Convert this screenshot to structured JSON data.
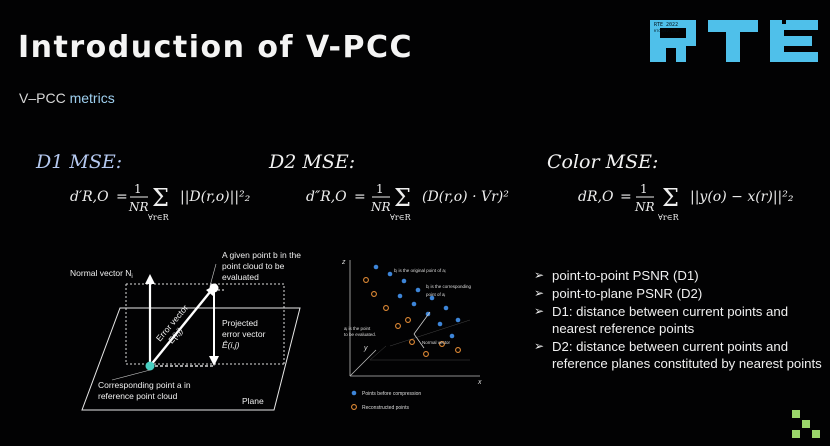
{
  "slide": {
    "title": "Introduction of V-PCC",
    "subtitle_prefix": "V–PCC ",
    "subtitle_highlight": "metrics"
  },
  "logo": {
    "letters": "RTE",
    "badge_text": "RTE 2022",
    "badge_subtext": "RTC.DEV.LIVE",
    "color": "#4fc0ea"
  },
  "formulas": {
    "d1": {
      "label": "D1 MSE:",
      "lhs": "d′R,O",
      "expr": "||D(r,o)||²₂"
    },
    "d2": {
      "label": "D2 MSE:",
      "lhs": "d″R,O",
      "expr": "(D(r,o) · Vr)²"
    },
    "color": {
      "label": "Color MSE:",
      "lhs": "dR,O",
      "expr": "||y(o) − x(r)||²₂"
    },
    "fraction_num": "1",
    "fraction_den": "NR",
    "sum_sub": "∀r∈R"
  },
  "diagram_left": {
    "normal_vector": "Normal vector N",
    "normal_sub": "i",
    "given_point_l1": "A given point b",
    "given_point_l1_tail": " in the",
    "given_point_l2": "point cloud to be",
    "given_point_l3": "evaluated",
    "error_vector_l1": "Error vector",
    "error_vector_l2": "E(i,j)",
    "projected_l1": "Projected",
    "projected_l2": "error vector",
    "projected_l3": "Ê(i,j)",
    "corresponding_l1": "Corresponding point a",
    "corresponding_l1_tail": " in",
    "corresponding_l2": "reference point cloud",
    "plane": "Plane"
  },
  "diagram_right": {
    "ann_original": "bⱼ is the original point of aⱼ",
    "ann_corresponding_l1": "bⱼ is the corresponding",
    "ann_corresponding_l2": "point of aⱼ",
    "ann_point_l1": "aⱼ is the point",
    "ann_point_l2": "to be evaluated.",
    "ann_normal": "Normal vector",
    "axis_z": "z",
    "axis_y": "y",
    "axis_x": "x",
    "legend_before": "Points before compression",
    "legend_recon": "Reconstructed points",
    "color_before": "#3d85d8",
    "color_recon": "#e08a35"
  },
  "bullets": [
    "point-to-point PSNR (D1)",
    "point-to-plane PSNR (D2)",
    "D1: distance between current points and nearest reference points",
    "D2: distance between current points and reference planes constituted by nearest points"
  ],
  "colors": {
    "d1_label": "#b4c8ef",
    "subtitle_highlight": "#9fd0f0",
    "corner_mark": "#9ad56a"
  }
}
